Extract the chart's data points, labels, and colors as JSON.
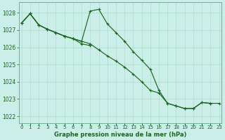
{
  "title": "Graphe pression niveau de la mer (hPa)",
  "x_labels": [
    "0",
    "1",
    "2",
    "3",
    "4",
    "5",
    "6",
    "7",
    "8",
    "9",
    "10",
    "11",
    "12",
    "13",
    "14",
    "15",
    "16",
    "17",
    "18",
    "19",
    "20",
    "21",
    "22",
    "23"
  ],
  "ylim": [
    1021.6,
    1028.6
  ],
  "yticks": [
    1022,
    1023,
    1024,
    1025,
    1026,
    1027,
    1028
  ],
  "background_color": "#cceee8",
  "grid_color": "#aaddcc",
  "line_color": "#1a6620",
  "line1": [
    1027.4,
    1027.95,
    1027.3,
    1027.05,
    1026.85,
    1026.65,
    1026.5,
    1026.35,
    1026.2,
    1025.85,
    1025.5,
    1025.2,
    1024.85,
    1024.45,
    1024.0,
    1023.5,
    1023.35,
    1022.75,
    1022.6,
    1022.45,
    1022.45,
    1022.8,
    1022.75,
    1022.75
  ],
  "line2": [
    1027.4,
    1027.95,
    1027.3,
    1027.05,
    1026.85,
    1026.65,
    1026.5,
    1026.35,
    1028.1,
    1028.2,
    1027.35,
    1026.85,
    1026.35,
    1025.75,
    1025.25,
    1024.72,
    1023.5,
    1022.75,
    1022.6,
    1022.45,
    1022.45,
    1022.8,
    1022.75,
    null
  ],
  "line3_x": [
    0,
    1,
    2,
    3,
    4,
    5,
    6,
    7,
    8
  ],
  "line3_y": [
    1027.4,
    1027.95,
    1027.3,
    1027.05,
    1026.85,
    1026.65,
    1026.5,
    1026.2,
    1026.1
  ],
  "figsize": [
    3.2,
    2.0
  ],
  "dpi": 100
}
